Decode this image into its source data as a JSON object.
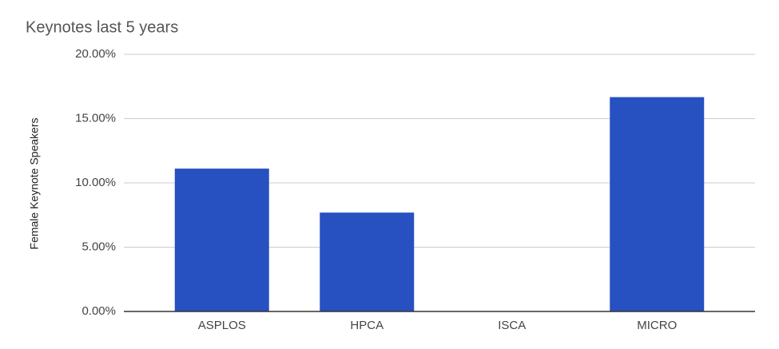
{
  "chart_data": {
    "type": "bar",
    "title": "Keynotes last 5 years",
    "y_label": "Female Keynote Speakers",
    "categories": [
      "ASPLOS",
      "HPCA",
      "ISCA",
      "MICRO"
    ],
    "values": [
      11.11,
      7.69,
      0,
      16.67
    ],
    "color": "#2750c0",
    "ylim": [
      0,
      20
    ],
    "yticks": [
      {
        "value": 0,
        "label": "0.00%"
      },
      {
        "value": 5,
        "label": "5.00%"
      },
      {
        "value": 10,
        "label": "10.00%"
      },
      {
        "value": 15,
        "label": "15.00%"
      },
      {
        "value": 20,
        "label": "20.00%"
      }
    ],
    "grid": true
  }
}
